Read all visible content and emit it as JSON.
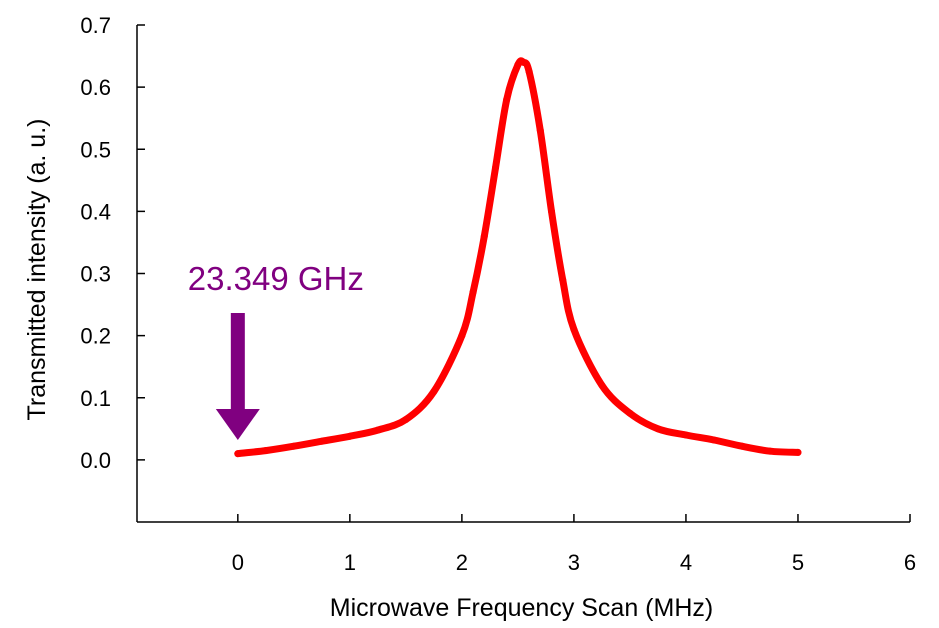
{
  "chart_data": {
    "type": "line",
    "title": "",
    "xlabel": "Microwave Frequency Scan (MHz)",
    "ylabel": "Transmitted intensity (a. u.)",
    "xlim": [
      -0.9,
      6
    ],
    "ylim": [
      -0.1,
      0.7
    ],
    "x_ticks": [
      "0",
      "1",
      "2",
      "3",
      "4",
      "5",
      "6"
    ],
    "y_ticks": [
      "0.0",
      "0.1",
      "0.2",
      "0.3",
      "0.4",
      "0.5",
      "0.6",
      "0.7"
    ],
    "grid": false,
    "legend": "none",
    "line_color": "#ff0000",
    "series": [
      {
        "x": [
          0,
          0.25,
          0.5,
          0.75,
          1.0,
          1.25,
          1.5,
          1.75,
          2.0,
          2.1,
          2.2,
          2.3,
          2.4,
          2.5,
          2.55,
          2.6,
          2.7,
          2.8,
          2.9,
          3.0,
          3.25,
          3.5,
          3.75,
          4.0,
          4.25,
          4.5,
          4.75,
          5.0
        ],
        "y": [
          0.01,
          0.015,
          0.022,
          0.03,
          0.038,
          0.048,
          0.065,
          0.11,
          0.2,
          0.27,
          0.36,
          0.47,
          0.58,
          0.636,
          0.64,
          0.625,
          0.53,
          0.4,
          0.29,
          0.21,
          0.12,
          0.075,
          0.05,
          0.04,
          0.032,
          0.022,
          0.014,
          0.012
        ]
      }
    ],
    "annotation": {
      "text": "23.349  GHz",
      "x": 0,
      "color": "#800080",
      "arrow": "down"
    }
  }
}
